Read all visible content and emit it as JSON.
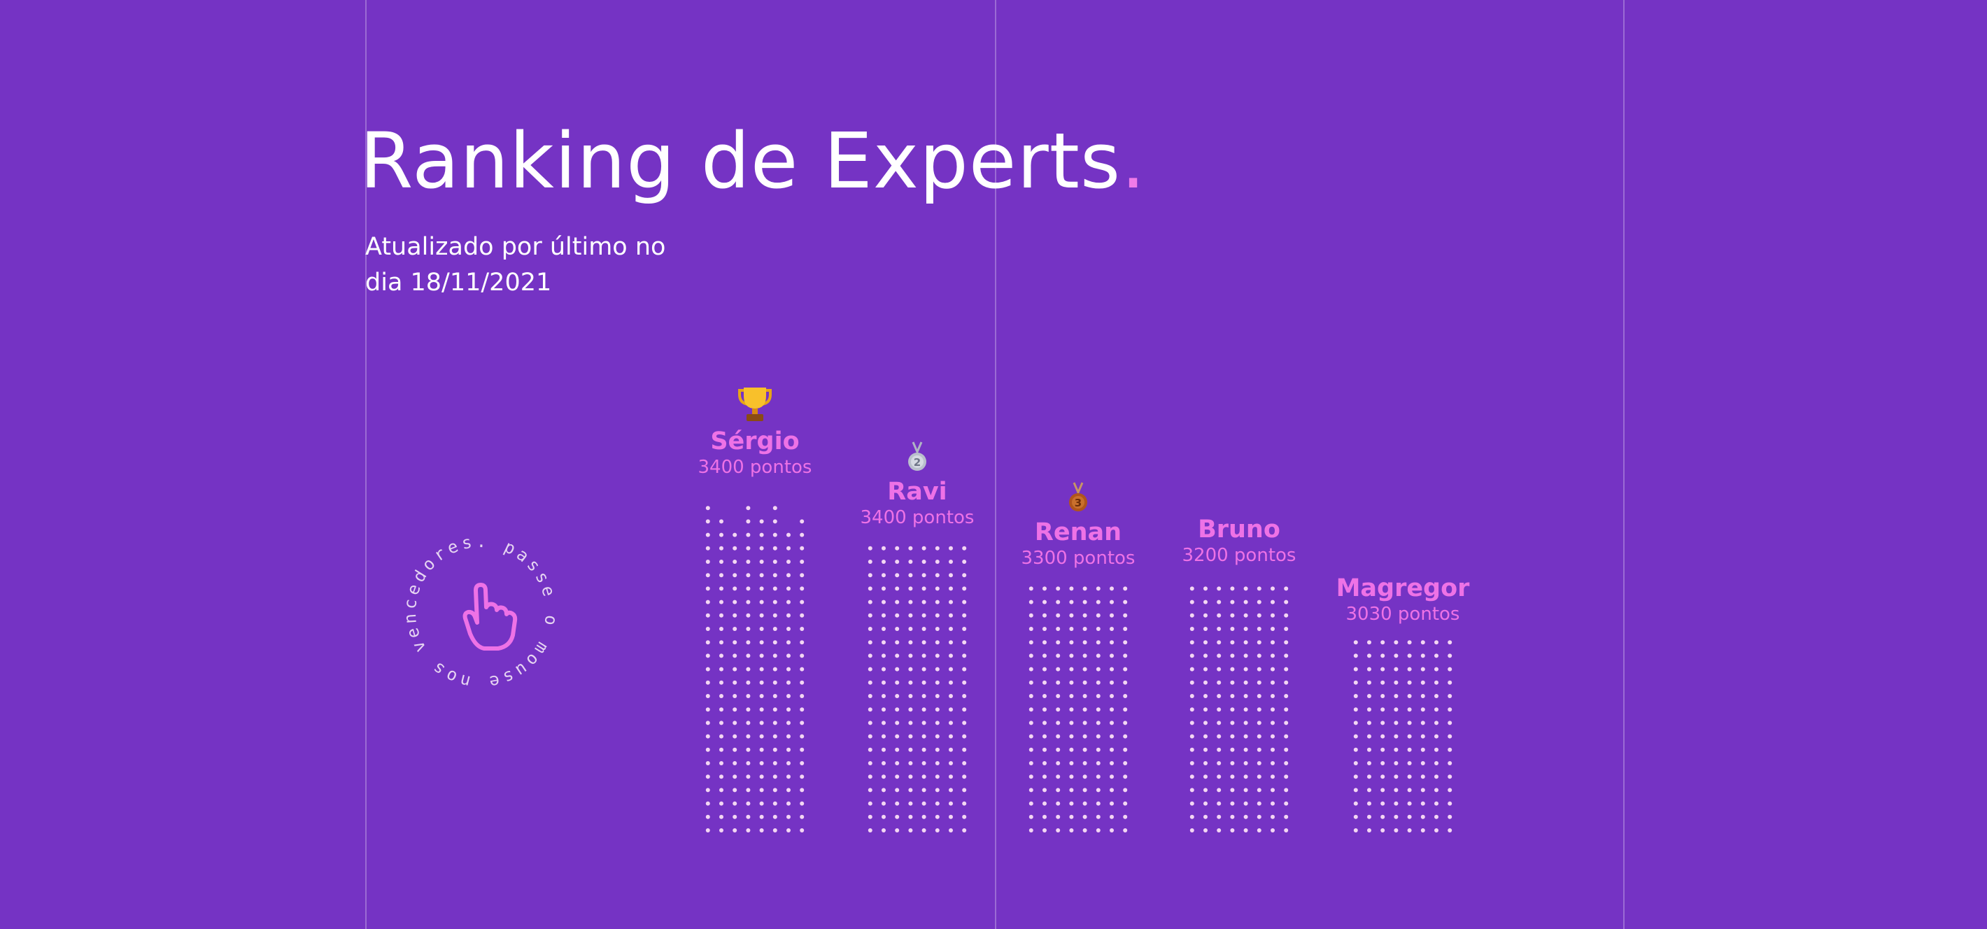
{
  "header": {
    "title": "Ranking de Experts",
    "title_dot": ".",
    "updated_line1": "Atualizado por último no",
    "updated_line2": "dia 18/11/2021"
  },
  "hover_badge": {
    "text": "passe o mouse nos vencedores.",
    "icon": "pointing-hand-icon"
  },
  "ranking": [
    {
      "name": "Sérgio",
      "points": "3400 pontos",
      "value": 3400,
      "medal": "trophy-icon"
    },
    {
      "name": "Ravi",
      "points": "3400 pontos",
      "value": 3400,
      "medal": "silver-medal-icon"
    },
    {
      "name": "Renan",
      "points": "3300 pontos",
      "value": 3300,
      "medal": "bronze-medal-icon"
    },
    {
      "name": "Bruno",
      "points": "3200 pontos",
      "value": 3200,
      "medal": ""
    },
    {
      "name": "Magregor",
      "points": "3030 pontos",
      "value": 3030,
      "medal": ""
    }
  ],
  "colors": {
    "background": "#7533c4",
    "accent": "#ee72e6",
    "dot": "#f3d6f3",
    "gridline": "rgba(255,255,255,0.28)"
  }
}
